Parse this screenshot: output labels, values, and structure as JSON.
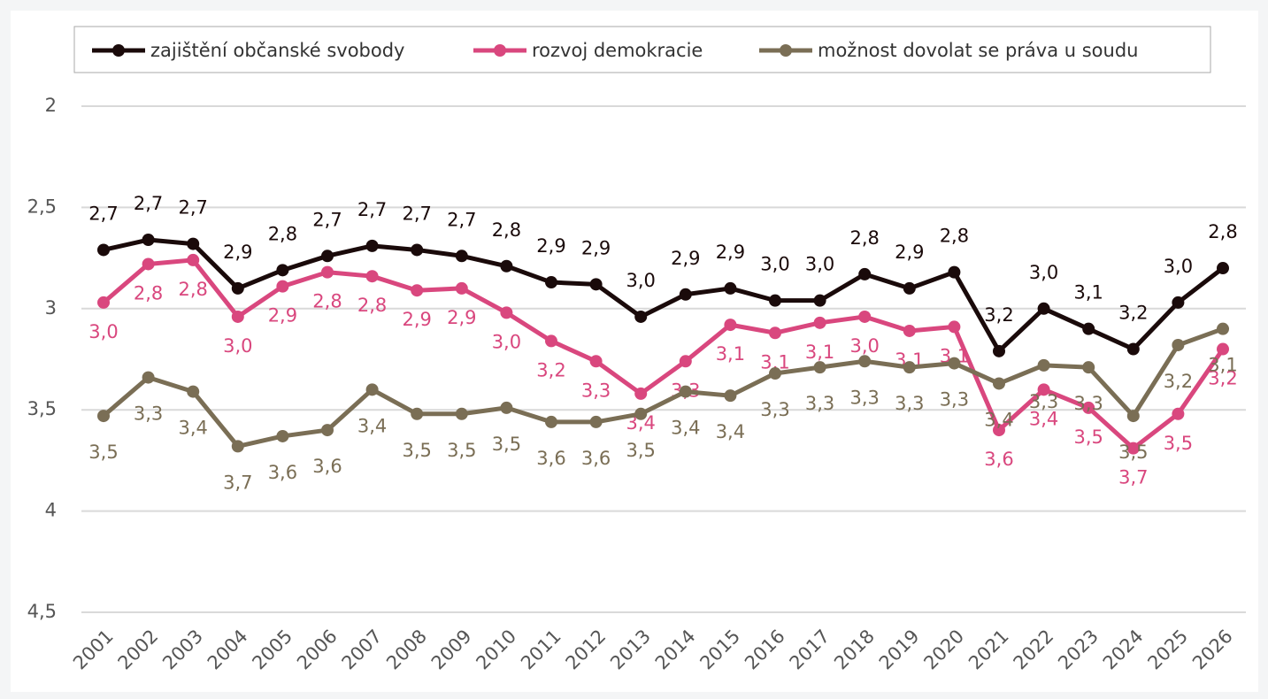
{
  "chart_data": {
    "type": "line",
    "categories": [
      "2001",
      "2002",
      "2003",
      "2004",
      "2005",
      "2006",
      "2007",
      "2008",
      "2009",
      "2010",
      "2011",
      "2012",
      "2013",
      "2014",
      "2015",
      "2016",
      "2017",
      "2018",
      "2019",
      "2020",
      "2021",
      "2022",
      "2023",
      "2024",
      "2025",
      "2026"
    ],
    "ylim": [
      2,
      4.5
    ],
    "y_inverted": true,
    "yticks": [
      2,
      {
        "value": 2.5,
        "label": "2,5"
      },
      3,
      {
        "value": 3.5,
        "label": "3,5"
      },
      4,
      {
        "value": 4.5,
        "label": "4,5"
      }
    ],
    "grid": true,
    "legend": "top",
    "series": [
      {
        "name": "zajištění občanské svobody",
        "color": "#1a0a0a",
        "values": [
          2.71,
          2.66,
          2.68,
          2.9,
          2.81,
          2.74,
          2.69,
          2.71,
          2.74,
          2.79,
          2.87,
          2.88,
          3.04,
          2.93,
          2.9,
          2.96,
          2.96,
          2.83,
          2.9,
          2.82,
          3.21,
          3.0,
          3.1,
          3.2,
          2.97,
          2.8
        ],
        "value_labels": [
          "2,7",
          "2,7",
          "2,7",
          "2,9",
          "2,8",
          "2,7",
          "2,7",
          "2,7",
          "2,7",
          "2,8",
          "2,9",
          "2,9",
          "3,0",
          "2,9",
          "2,9",
          "3,0",
          "3,0",
          "2,8",
          "2,9",
          "2,8",
          "3,2",
          "3,0",
          "3,1",
          "3,2",
          "3,0",
          "2,8"
        ]
      },
      {
        "name": "rozvoj demokracie",
        "color": "#d9477e",
        "values": [
          2.97,
          2.78,
          2.76,
          3.04,
          2.89,
          2.82,
          2.84,
          2.91,
          2.9,
          3.02,
          3.16,
          3.26,
          3.42,
          3.26,
          3.08,
          3.12,
          3.07,
          3.04,
          3.11,
          3.09,
          3.6,
          3.4,
          3.49,
          3.69,
          3.52,
          3.2
        ],
        "value_labels": [
          "3,0",
          "2,8",
          "2,8",
          "3,0",
          "2,9",
          "2,8",
          "2,8",
          "2,9",
          "2,9",
          "3,0",
          "3,2",
          "3,3",
          "3,4",
          "3,3",
          "3,1",
          "3,1",
          "3,1",
          "3,0",
          "3,1",
          "3,1",
          "3,6",
          "3,4",
          "3,5",
          "3,7",
          "3,5",
          "3,2"
        ]
      },
      {
        "name": "možnost dovolat se práva u soudu",
        "color": "#7a6e55",
        "values": [
          3.53,
          3.34,
          3.41,
          3.68,
          3.63,
          3.6,
          3.4,
          3.52,
          3.52,
          3.49,
          3.56,
          3.56,
          3.52,
          3.41,
          3.43,
          3.32,
          3.29,
          3.26,
          3.29,
          3.27,
          3.37,
          3.28,
          3.29,
          3.53,
          3.18,
          3.1
        ],
        "value_labels": [
          "3,5",
          "3,3",
          "3,4",
          "3,7",
          "3,6",
          "3,6",
          "3,4",
          "3,5",
          "3,5",
          "3,5",
          "3,6",
          "3,6",
          "3,5",
          "3,4",
          "3,4",
          "3,3",
          "3,3",
          "3,3",
          "3,3",
          "3,3",
          "3,4",
          "3,3",
          "3,3",
          "3,5",
          "3,2",
          "3,1"
        ]
      }
    ]
  }
}
